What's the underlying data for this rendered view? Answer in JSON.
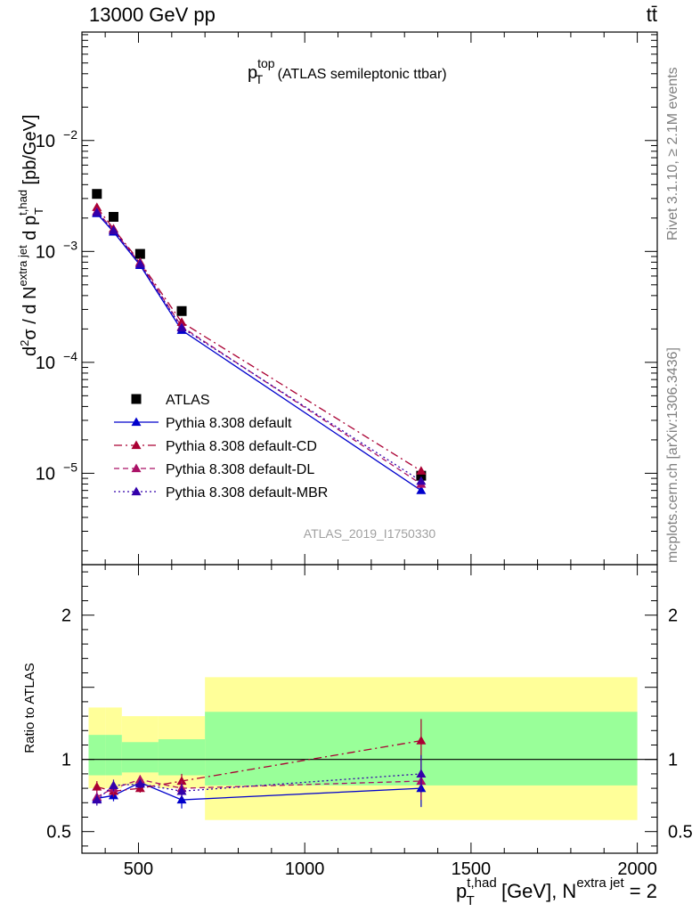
{
  "header": {
    "process": "13000 GeV pp",
    "final_state": "tt̄"
  },
  "side_labels": {
    "rivet": "Rivet 3.1.10, ≥ 2.1M events",
    "mcplots": "mcplots.cern.ch [arXiv:1306.3436]"
  },
  "chart_data": [
    {
      "type": "scatter",
      "panel": "main",
      "title": {
        "main": "p",
        "sup": "top",
        "sub": "T",
        "rest": " (ATLAS semileptonic ttbar)"
      },
      "watermark": "ATLAS_2019_I1750330",
      "ylabel": "d²σ / d N^extra jet d p_T^t,had [pb/GeV]",
      "yscale": "log",
      "ylim": [
        1.5e-06,
        0.095
      ],
      "xlim": [
        330,
        2060
      ],
      "y_ticks": [
        {
          "value": 1e-05,
          "label": "10",
          "exp": "−5"
        },
        {
          "value": 0.0001,
          "label": "10",
          "exp": "−4"
        },
        {
          "value": 0.001,
          "label": "10",
          "exp": "−3"
        },
        {
          "value": 0.01,
          "label": "10",
          "exp": "−2"
        }
      ],
      "legend_position": "lower-left",
      "bins": [
        [
          350,
          400
        ],
        [
          400,
          450
        ],
        [
          450,
          560
        ],
        [
          560,
          700
        ],
        [
          700,
          2000
        ]
      ],
      "series": [
        {
          "name": "ATLAS",
          "color": "#000000",
          "marker": "square",
          "dash": "none",
          "x": [
            375,
            425,
            505,
            630,
            1350
          ],
          "y": [
            0.0033,
            0.00205,
            0.00095,
            0.00029,
            9.5e-06
          ]
        },
        {
          "name": "Pythia 8.308 default",
          "color": "#0000cc",
          "marker": "triangle",
          "dash": "solid",
          "x": [
            375,
            425,
            505,
            630,
            1350
          ],
          "y": [
            0.0022,
            0.0015,
            0.00075,
            0.000195,
            7e-06
          ]
        },
        {
          "name": "Pythia 8.308 default-CD",
          "color": "#aa0033",
          "marker": "triangle",
          "dash": "dashdot",
          "x": [
            375,
            425,
            505,
            630,
            1350
          ],
          "y": [
            0.0025,
            0.0016,
            0.0008,
            0.00023,
            1.05e-05
          ]
        },
        {
          "name": "Pythia 8.308 default-DL",
          "color": "#aa1166",
          "marker": "triangle",
          "dash": "dashed",
          "x": [
            375,
            425,
            505,
            630,
            1350
          ],
          "y": [
            0.0023,
            0.00155,
            0.00078,
            0.00021,
            8e-06
          ]
        },
        {
          "name": "Pythia 8.308 default-MBR",
          "color": "#3300aa",
          "marker": "triangle",
          "dash": "dotted",
          "x": [
            375,
            425,
            505,
            630,
            1350
          ],
          "y": [
            0.00225,
            0.00155,
            0.00077,
            0.000205,
            8.5e-06
          ]
        }
      ]
    },
    {
      "type": "scatter",
      "panel": "ratio",
      "ylabel": "Ratio to ATLAS",
      "xlabel": {
        "p": "p",
        "sup": "t,had",
        "sub": "T",
        "rest": " [GeV], N",
        "sup2": "extra jet",
        "rest2": " = 2"
      },
      "ylim": [
        0.35,
        2.35
      ],
      "xlim": [
        330,
        2060
      ],
      "x_ticks": [
        500,
        1000,
        1500,
        2000
      ],
      "y_ticks": [
        0.5,
        1,
        2
      ],
      "reference": 1,
      "bands": [
        {
          "x0": 350,
          "x1": 400,
          "green": [
            0.89,
            1.17
          ],
          "yellow": [
            0.8,
            1.36
          ]
        },
        {
          "x0": 400,
          "x1": 450,
          "green": [
            0.89,
            1.17
          ],
          "yellow": [
            0.8,
            1.36
          ]
        },
        {
          "x0": 450,
          "x1": 560,
          "green": [
            0.91,
            1.12
          ],
          "yellow": [
            0.82,
            1.3
          ]
        },
        {
          "x0": 560,
          "x1": 700,
          "green": [
            0.89,
            1.14
          ],
          "yellow": [
            0.8,
            1.3
          ]
        },
        {
          "x0": 700,
          "x1": 2000,
          "green": [
            0.82,
            1.33
          ],
          "yellow": [
            0.58,
            1.57
          ]
        }
      ],
      "series": [
        {
          "name": "Pythia 8.308 default",
          "color": "#0000cc",
          "dash": "solid",
          "x": [
            375,
            425,
            505,
            630,
            1350
          ],
          "y": [
            0.73,
            0.75,
            0.84,
            0.72,
            0.8
          ],
          "err": [
            0.04,
            0.04,
            0.03,
            0.06,
            0.13
          ]
        },
        {
          "name": "Pythia 8.308 default-CD",
          "color": "#aa0033",
          "dash": "dashdot",
          "x": [
            375,
            425,
            505,
            630,
            1350
          ],
          "y": [
            0.81,
            0.78,
            0.8,
            0.85,
            1.13
          ],
          "err": [
            0.04,
            0.04,
            0.03,
            0.05,
            0.15
          ]
        },
        {
          "name": "Pythia 8.308 default-DL",
          "color": "#aa1166",
          "dash": "dashed",
          "x": [
            375,
            425,
            505,
            630,
            1350
          ],
          "y": [
            0.74,
            0.8,
            0.86,
            0.8,
            0.85
          ],
          "err": [
            0.04,
            0.04,
            0.03,
            0.05,
            0.13
          ]
        },
        {
          "name": "Pythia 8.308 default-MBR",
          "color": "#3300aa",
          "dash": "dotted",
          "x": [
            375,
            425,
            505,
            630,
            1350
          ],
          "y": [
            0.72,
            0.82,
            0.83,
            0.78,
            0.9
          ],
          "err": [
            0.04,
            0.04,
            0.03,
            0.05,
            0.13
          ]
        }
      ]
    }
  ]
}
